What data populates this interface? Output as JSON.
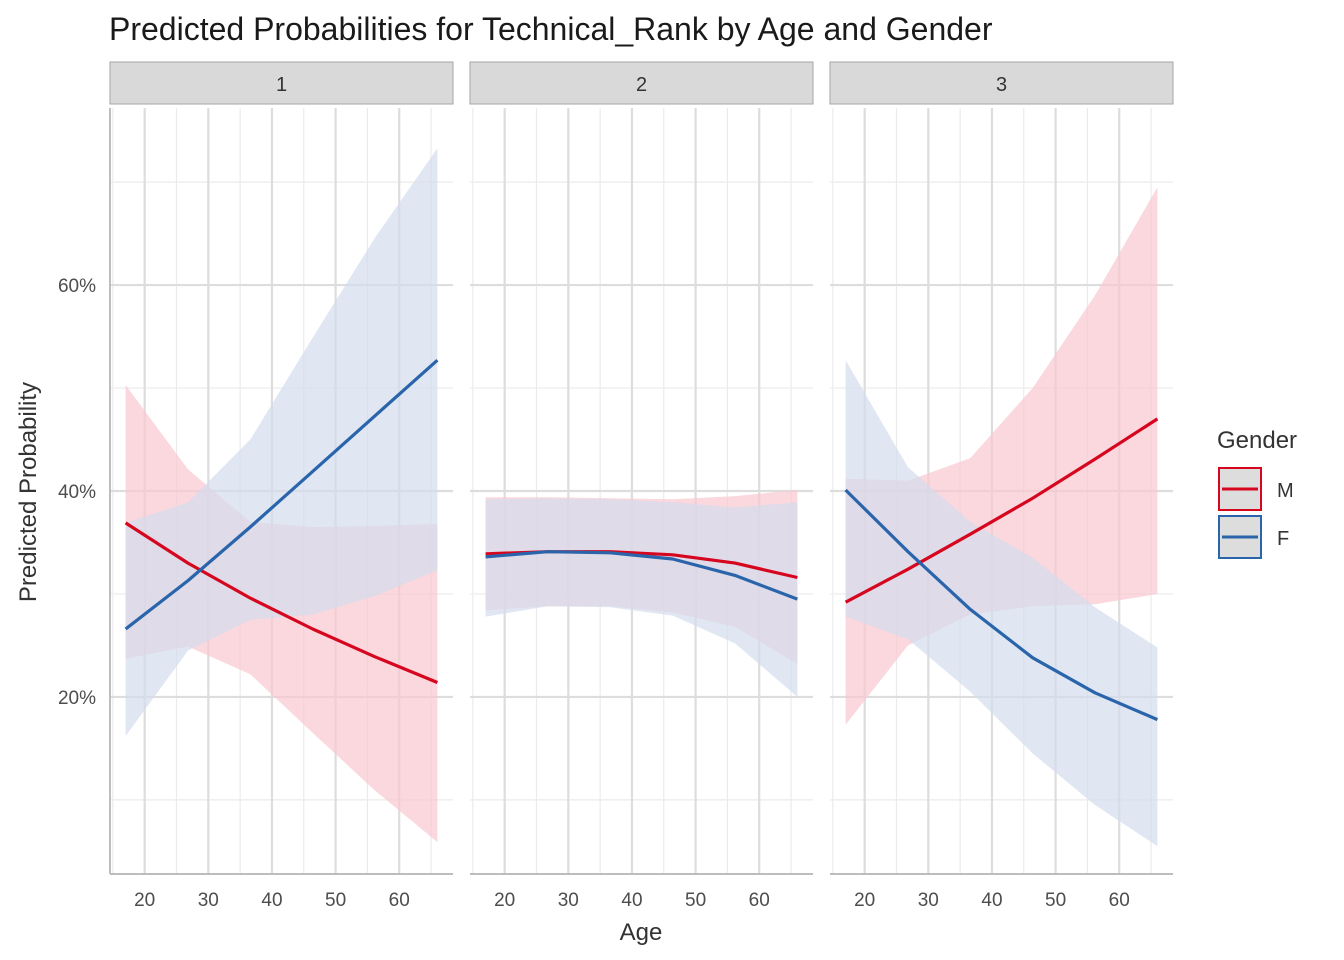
{
  "chart_data": {
    "type": "line",
    "title": "Predicted Probabilities for Technical_Rank by Age and Gender",
    "xlabel": "Age",
    "ylabel": "Predicted Probability",
    "facets": [
      "1",
      "2",
      "3"
    ],
    "xlim": [
      14.55,
      68.45
    ],
    "ylim": [
      0.028,
      0.772
    ],
    "x_ticks": [
      20,
      30,
      40,
      50,
      60
    ],
    "x_tick_labels": [
      "20",
      "30",
      "40",
      "50",
      "60"
    ],
    "y_ticks": [
      0.2,
      0.4,
      0.6
    ],
    "y_tick_labels": [
      "20%",
      "40%",
      "60%"
    ],
    "grid": true,
    "legend": {
      "title": "Gender",
      "position": "right"
    },
    "x": [
      17,
      26.8,
      36.6,
      46.4,
      56.2,
      66
    ],
    "series": [
      {
        "name": "M",
        "color": "#D7061F",
        "fill": "#F8C8CF",
        "panels": [
          {
            "y": [
              0.369,
              0.33,
              0.296,
              0.266,
              0.239,
              0.214
            ],
            "lower": [
              0.237,
              0.249,
              0.222,
              0.165,
              0.109,
              0.059
            ],
            "upper": [
              0.503,
              0.421,
              0.37,
              0.365,
              0.366,
              0.368
            ]
          },
          {
            "y": [
              0.339,
              0.341,
              0.341,
              0.338,
              0.33,
              0.316
            ],
            "lower": [
              0.284,
              0.288,
              0.288,
              0.282,
              0.268,
              0.232
            ],
            "upper": [
              0.394,
              0.394,
              0.393,
              0.392,
              0.395,
              0.401
            ]
          },
          {
            "y": [
              0.292,
              0.324,
              0.358,
              0.393,
              0.431,
              0.47
            ],
            "lower": [
              0.173,
              0.25,
              0.28,
              0.288,
              0.29,
              0.3
            ],
            "upper": [
              0.412,
              0.41,
              0.432,
              0.5,
              0.59,
              0.695
            ]
          }
        ]
      },
      {
        "name": "F",
        "color": "#2A65AB",
        "fill": "#D3DDEE",
        "panels": [
          {
            "y": [
              0.266,
              0.313,
              0.365,
              0.419,
              0.473,
              0.527
            ],
            "lower": [
              0.162,
              0.245,
              0.275,
              0.28,
              0.298,
              0.323
            ],
            "upper": [
              0.369,
              0.389,
              0.45,
              0.549,
              0.646,
              0.733
            ]
          },
          {
            "y": [
              0.336,
              0.341,
              0.34,
              0.334,
              0.318,
              0.295
            ],
            "lower": [
              0.278,
              0.288,
              0.287,
              0.279,
              0.252,
              0.2
            ],
            "upper": [
              0.392,
              0.393,
              0.392,
              0.389,
              0.384,
              0.389
            ]
          },
          {
            "y": [
              0.401,
              0.341,
              0.285,
              0.238,
              0.204,
              0.178
            ],
            "lower": [
              0.278,
              0.256,
              0.205,
              0.145,
              0.095,
              0.055
            ],
            "upper": [
              0.527,
              0.423,
              0.37,
              0.335,
              0.287,
              0.248
            ]
          }
        ]
      }
    ]
  }
}
